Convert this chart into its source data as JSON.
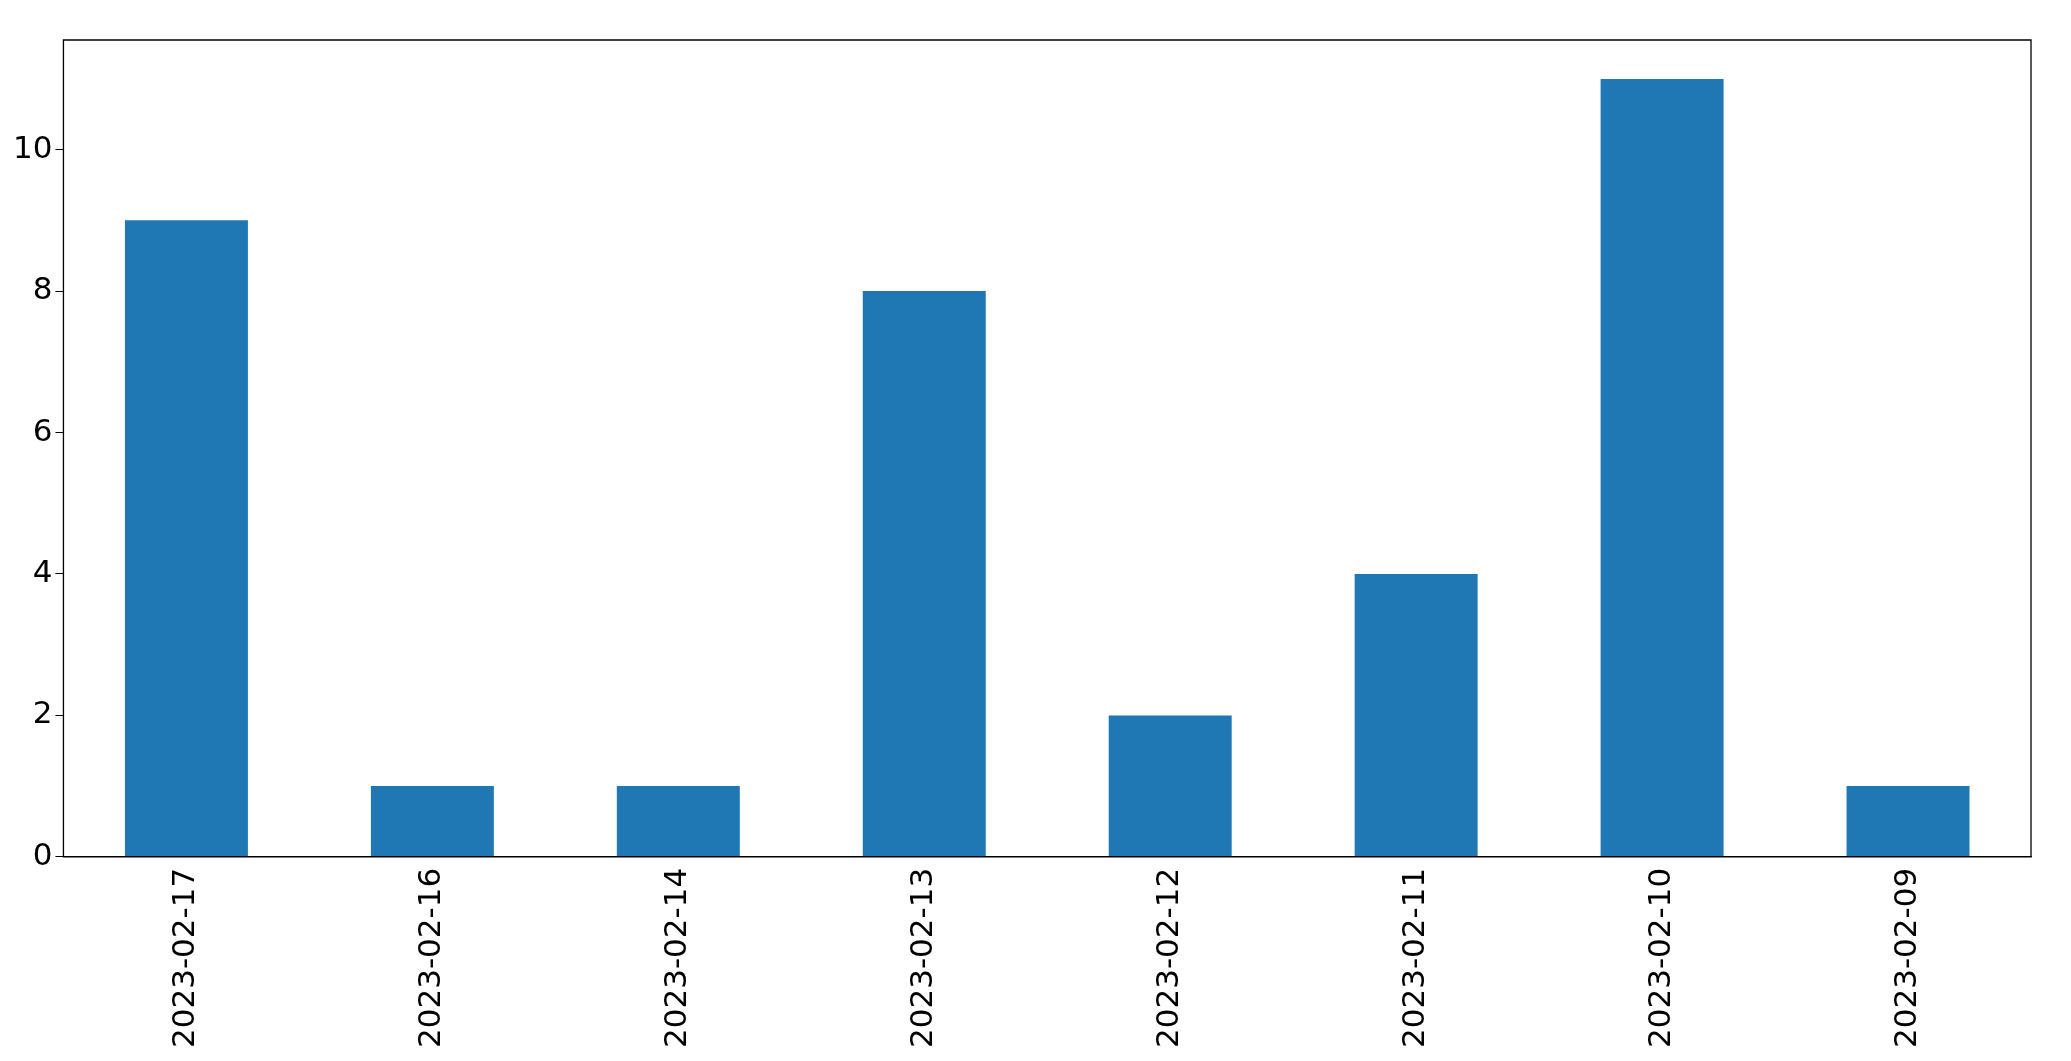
{
  "chart_data": {
    "type": "bar",
    "categories": [
      "2023-02-17",
      "2023-02-16",
      "2023-02-14",
      "2023-02-13",
      "2023-02-12",
      "2023-02-11",
      "2023-02-10",
      "2023-02-09"
    ],
    "values": [
      9,
      1,
      1,
      8,
      2,
      4,
      11,
      1
    ],
    "color": "#1f77b4",
    "ylim": [
      0,
      11.55
    ],
    "yticks": [
      0,
      2,
      4,
      6,
      8,
      10
    ],
    "grid": false,
    "legend": false
  }
}
